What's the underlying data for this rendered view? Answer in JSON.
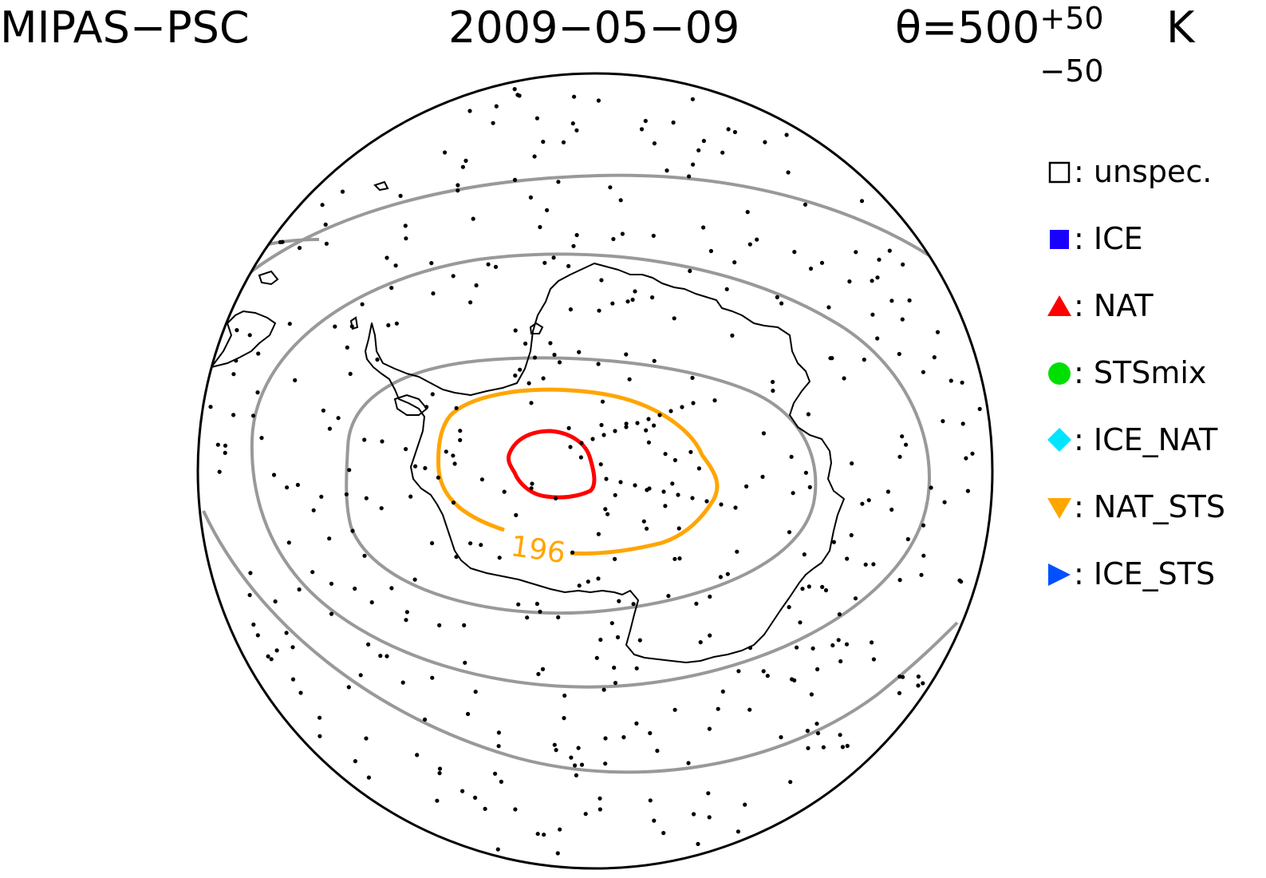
{
  "header": {
    "instrument": "MIPAS−PSC",
    "date": "2009−05−09",
    "theta_prefix": "θ=500",
    "theta_plus": "+50",
    "theta_minus": "−50",
    "theta_unit": "K"
  },
  "legend": {
    "items": [
      {
        "symbol": "open-square",
        "label": "□: unspec.",
        "text": ": unspec.",
        "color": "#000000"
      },
      {
        "symbol": "filled-square",
        "label": "ICE",
        "text": ": ICE",
        "color": "#1a00ff"
      },
      {
        "symbol": "triangle-up",
        "label": "NAT",
        "text": ": NAT",
        "color": "#ff0000"
      },
      {
        "symbol": "circle",
        "label": "STSmix",
        "text": ": STSmix",
        "color": "#00e000"
      },
      {
        "symbol": "diamond",
        "label": "ICE_NAT",
        "text": ": ICE_NAT",
        "color": "#00e5ff"
      },
      {
        "symbol": "triangle-down",
        "label": "NAT_STS",
        "text": ": NAT_STS",
        "color": "#ffa500"
      },
      {
        "symbol": "triangle-right",
        "label": "ICE_STS",
        "text": ": ICE_STS",
        "color": "#0050ff"
      }
    ]
  },
  "map": {
    "projection": "south-polar-stereographic",
    "contour_label": "196",
    "colors": {
      "latitude_circles": "#999999",
      "coastline": "#000000",
      "contour_196": "#ffa500",
      "contour_inner": "#ff0000",
      "observations": "#000000"
    }
  }
}
